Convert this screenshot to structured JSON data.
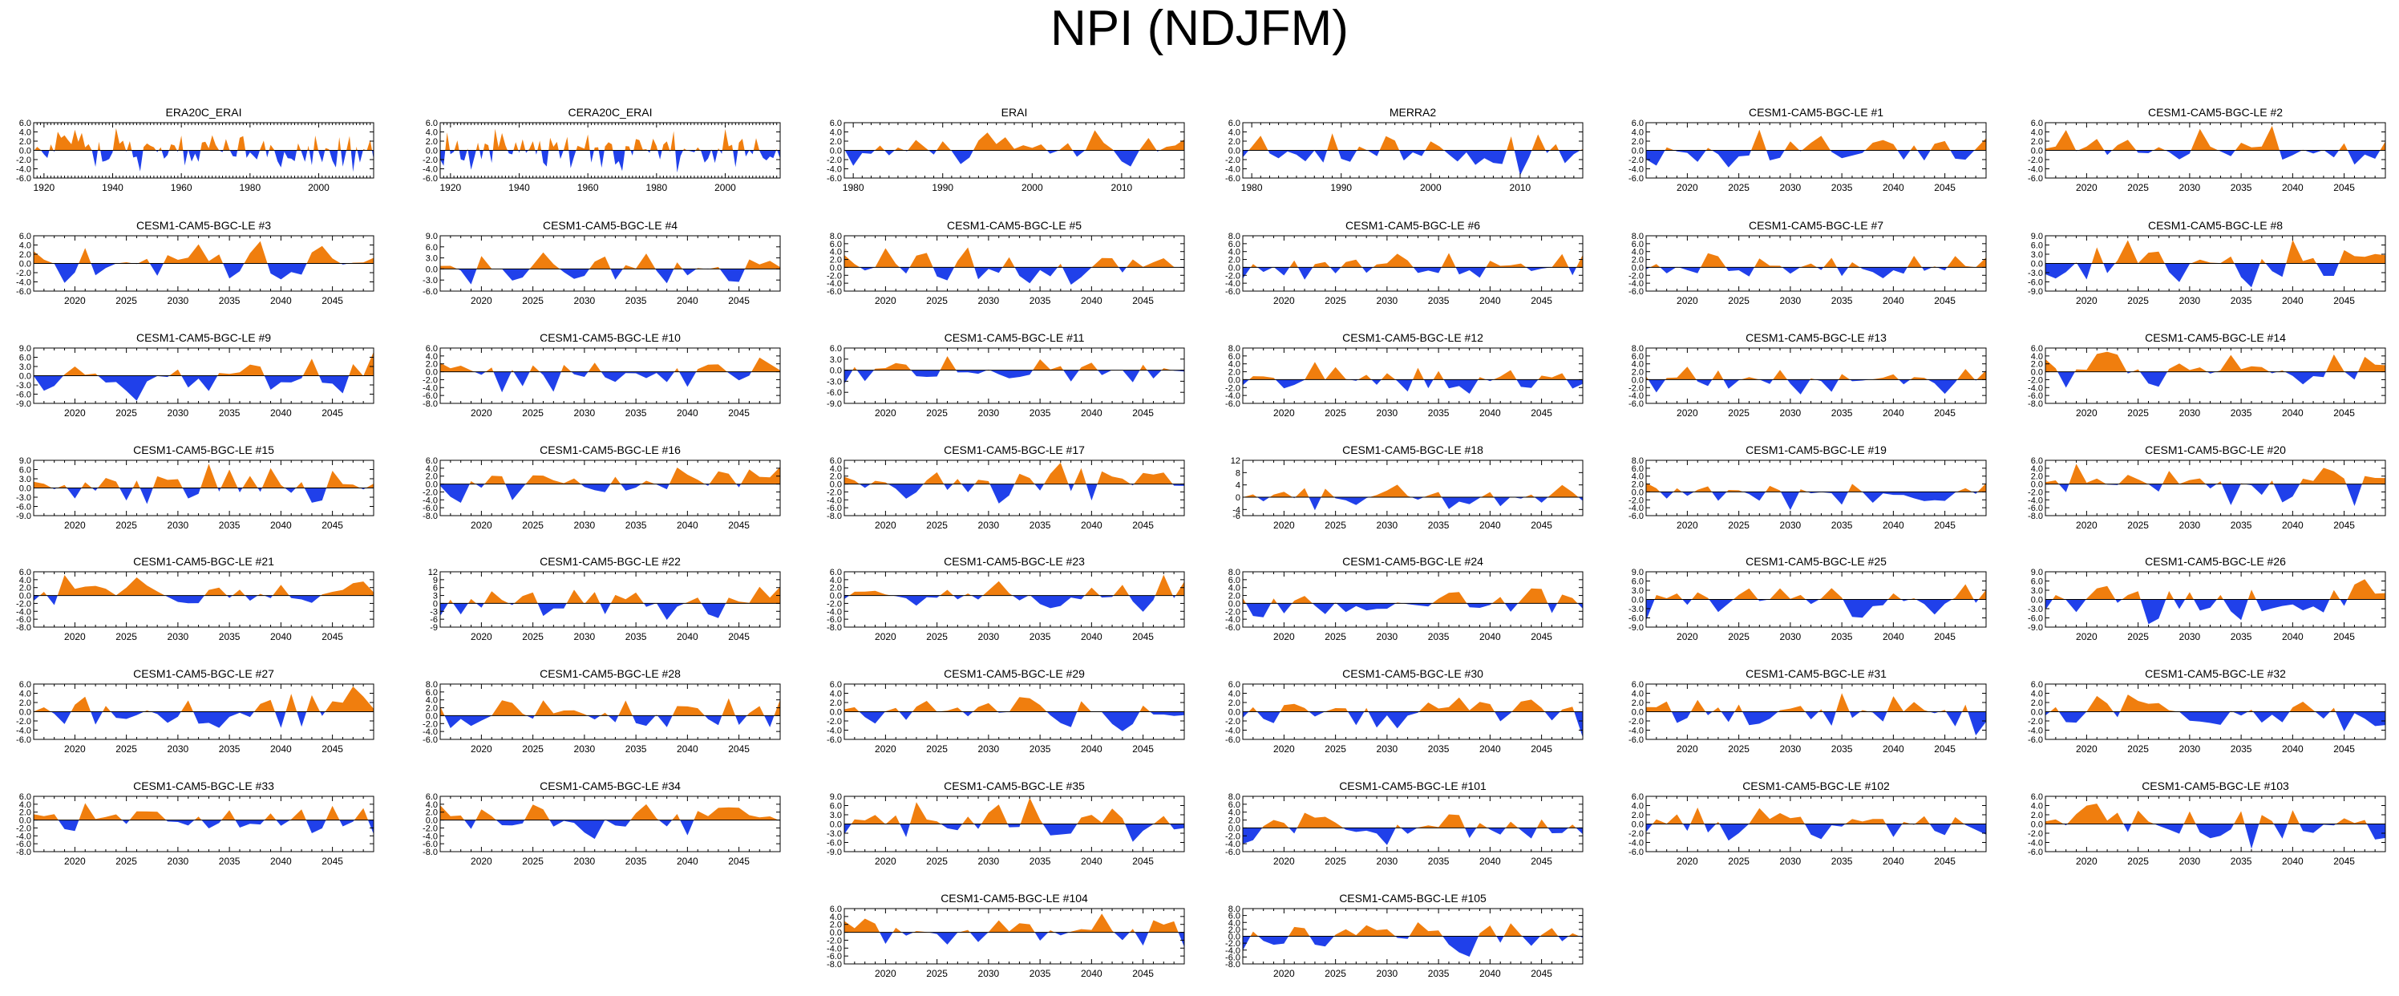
{
  "figure": {
    "title": "NPI (NDJFM)"
  },
  "colors": {
    "positive": "#f07e0e",
    "negative": "#2040ea",
    "axis": "#000000",
    "zero": "#000000"
  },
  "chart_data": [
    {
      "type": "area",
      "title": "ERA20C_ERAI",
      "xrange": [
        1917,
        2016
      ],
      "xticks": [
        1920,
        1940,
        1960,
        1980,
        2000
      ],
      "ylim": [
        -6,
        6
      ],
      "yticks": [
        "6.0",
        "4.0",
        "2.0",
        "0.0",
        "-2.0",
        "-4.0",
        "-6.0"
      ],
      "seed": 11
    },
    {
      "type": "area",
      "title": "CERA20C_ERAI",
      "xrange": [
        1917,
        2016
      ],
      "xticks": [
        1920,
        1940,
        1960,
        1980,
        2000
      ],
      "ylim": [
        -6,
        6
      ],
      "yticks": [
        "6.0",
        "4.0",
        "2.0",
        "0.0",
        "-2.0",
        "-4.0",
        "-6.0"
      ],
      "seed": 12
    },
    {
      "type": "area",
      "title": "ERAI",
      "xrange": [
        1979,
        2017
      ],
      "xticks": [
        1980,
        1990,
        2000,
        2010
      ],
      "ylim": [
        -6,
        6
      ],
      "yticks": [
        "6.0",
        "4.0",
        "2.0",
        "0.0",
        "-2.0",
        "-4.0",
        "-6.0"
      ],
      "seed": 13
    },
    {
      "type": "area",
      "title": "MERRA2",
      "xrange": [
        1979,
        2017
      ],
      "xticks": [
        1980,
        1990,
        2000,
        2010
      ],
      "ylim": [
        -6,
        6
      ],
      "yticks": [
        "6.0",
        "4.0",
        "2.0",
        "0.0",
        "-2.0",
        "-4.0",
        "-6.0"
      ],
      "seed": 14
    },
    {
      "type": "area",
      "title": "CESM1-CAM5-BGC-LE #1",
      "xrange": [
        2016,
        2049
      ],
      "xticks": [
        2020,
        2025,
        2030,
        2035,
        2040,
        2045
      ],
      "ylim": [
        -6,
        6
      ],
      "yticks": [
        "6.0",
        "4.0",
        "2.0",
        "0.0",
        "-2.0",
        "-4.0",
        "-6.0"
      ],
      "seed": 21
    },
    {
      "type": "area",
      "title": "CESM1-CAM5-BGC-LE #2",
      "xrange": [
        2016,
        2049
      ],
      "xticks": [
        2020,
        2025,
        2030,
        2035,
        2040,
        2045
      ],
      "ylim": [
        -6,
        6
      ],
      "yticks": [
        "6.0",
        "4.0",
        "2.0",
        "0.0",
        "-2.0",
        "-4.0",
        "-6.0"
      ],
      "seed": 22
    },
    {
      "type": "area",
      "title": "CESM1-CAM5-BGC-LE #3",
      "xrange": [
        2016,
        2049
      ],
      "xticks": [
        2020,
        2025,
        2030,
        2035,
        2040,
        2045
      ],
      "ylim": [
        -6,
        6
      ],
      "yticks": [
        "6.0",
        "4.0",
        "2.0",
        "0.0",
        "-2.0",
        "-4.0",
        "-6.0"
      ],
      "seed": 23
    },
    {
      "type": "area",
      "title": "CESM1-CAM5-BGC-LE #4",
      "xrange": [
        2016,
        2049
      ],
      "xticks": [
        2020,
        2025,
        2030,
        2035,
        2040,
        2045
      ],
      "ylim": [
        -6,
        9
      ],
      "yticks": [
        "9.0",
        "6.0",
        "3.0",
        "0.0",
        "-3.0",
        "-6.0"
      ],
      "seed": 24
    },
    {
      "type": "area",
      "title": "CESM1-CAM5-BGC-LE #5",
      "xrange": [
        2016,
        2049
      ],
      "xticks": [
        2020,
        2025,
        2030,
        2035,
        2040,
        2045
      ],
      "ylim": [
        -6,
        8
      ],
      "yticks": [
        "8.0",
        "6.0",
        "4.0",
        "2.0",
        "0.0",
        "-2.0",
        "-4.0",
        "-6.0"
      ],
      "seed": 25
    },
    {
      "type": "area",
      "title": "CESM1-CAM5-BGC-LE #6",
      "xrange": [
        2016,
        2049
      ],
      "xticks": [
        2020,
        2025,
        2030,
        2035,
        2040,
        2045
      ],
      "ylim": [
        -6,
        8
      ],
      "yticks": [
        "8.0",
        "6.0",
        "4.0",
        "2.0",
        "0.0",
        "-2.0",
        "-4.0",
        "-6.0"
      ],
      "seed": 26
    },
    {
      "type": "area",
      "title": "CESM1-CAM5-BGC-LE #7",
      "xrange": [
        2016,
        2049
      ],
      "xticks": [
        2020,
        2025,
        2030,
        2035,
        2040,
        2045
      ],
      "ylim": [
        -6,
        8
      ],
      "yticks": [
        "8.0",
        "6.0",
        "4.0",
        "2.0",
        "0.0",
        "-2.0",
        "-4.0",
        "-6.0"
      ],
      "seed": 27
    },
    {
      "type": "area",
      "title": "CESM1-CAM5-BGC-LE #8",
      "xrange": [
        2016,
        2049
      ],
      "xticks": [
        2020,
        2025,
        2030,
        2035,
        2040,
        2045
      ],
      "ylim": [
        -9,
        9
      ],
      "yticks": [
        "9.0",
        "6.0",
        "3.0",
        "0.0",
        "-3.0",
        "-6.0",
        "-9.0"
      ],
      "seed": 28
    },
    {
      "type": "area",
      "title": "CESM1-CAM5-BGC-LE #9",
      "xrange": [
        2016,
        2049
      ],
      "xticks": [
        2020,
        2025,
        2030,
        2035,
        2040,
        2045
      ],
      "ylim": [
        -9,
        9
      ],
      "yticks": [
        "9.0",
        "6.0",
        "3.0",
        "0.0",
        "-3.0",
        "-6.0",
        "-9.0"
      ],
      "seed": 29
    },
    {
      "type": "area",
      "title": "CESM1-CAM5-BGC-LE #10",
      "xrange": [
        2016,
        2049
      ],
      "xticks": [
        2020,
        2025,
        2030,
        2035,
        2040,
        2045
      ],
      "ylim": [
        -8,
        6
      ],
      "yticks": [
        "6.0",
        "4.0",
        "2.0",
        "0.0",
        "-2.0",
        "-4.0",
        "-6.0",
        "-8.0"
      ],
      "seed": 30
    },
    {
      "type": "area",
      "title": "CESM1-CAM5-BGC-LE #11",
      "xrange": [
        2016,
        2049
      ],
      "xticks": [
        2020,
        2025,
        2030,
        2035,
        2040,
        2045
      ],
      "ylim": [
        -9,
        6
      ],
      "yticks": [
        "6.0",
        "3.0",
        "0.0",
        "-3.0",
        "-6.0",
        "-9.0"
      ],
      "seed": 31
    },
    {
      "type": "area",
      "title": "CESM1-CAM5-BGC-LE #12",
      "xrange": [
        2016,
        2049
      ],
      "xticks": [
        2020,
        2025,
        2030,
        2035,
        2040,
        2045
      ],
      "ylim": [
        -6,
        8
      ],
      "yticks": [
        "8.0",
        "6.0",
        "4.0",
        "2.0",
        "0.0",
        "-2.0",
        "-4.0",
        "-6.0"
      ],
      "seed": 32
    },
    {
      "type": "area",
      "title": "CESM1-CAM5-BGC-LE #13",
      "xrange": [
        2016,
        2049
      ],
      "xticks": [
        2020,
        2025,
        2030,
        2035,
        2040,
        2045
      ],
      "ylim": [
        -6,
        8
      ],
      "yticks": [
        "8.0",
        "6.0",
        "4.0",
        "2.0",
        "0.0",
        "-2.0",
        "-4.0",
        "-6.0"
      ],
      "seed": 33
    },
    {
      "type": "area",
      "title": "CESM1-CAM5-BGC-LE #14",
      "xrange": [
        2016,
        2049
      ],
      "xticks": [
        2020,
        2025,
        2030,
        2035,
        2040,
        2045
      ],
      "ylim": [
        -8,
        6
      ],
      "yticks": [
        "6.0",
        "4.0",
        "2.0",
        "0.0",
        "-2.0",
        "-4.0",
        "-6.0",
        "-8.0"
      ],
      "seed": 34
    },
    {
      "type": "area",
      "title": "CESM1-CAM5-BGC-LE #15",
      "xrange": [
        2016,
        2049
      ],
      "xticks": [
        2020,
        2025,
        2030,
        2035,
        2040,
        2045
      ],
      "ylim": [
        -9,
        9
      ],
      "yticks": [
        "9.0",
        "6.0",
        "3.0",
        "0.0",
        "-3.0",
        "-6.0",
        "-9.0"
      ],
      "seed": 35
    },
    {
      "type": "area",
      "title": "CESM1-CAM5-BGC-LE #16",
      "xrange": [
        2016,
        2049
      ],
      "xticks": [
        2020,
        2025,
        2030,
        2035,
        2040,
        2045
      ],
      "ylim": [
        -8,
        6
      ],
      "yticks": [
        "6.0",
        "4.0",
        "2.0",
        "0.0",
        "-2.0",
        "-4.0",
        "-6.0",
        "-8.0"
      ],
      "seed": 36
    },
    {
      "type": "area",
      "title": "CESM1-CAM5-BGC-LE #17",
      "xrange": [
        2016,
        2049
      ],
      "xticks": [
        2020,
        2025,
        2030,
        2035,
        2040,
        2045
      ],
      "ylim": [
        -8,
        6
      ],
      "yticks": [
        "6.0",
        "4.0",
        "2.0",
        "0.0",
        "-2.0",
        "-4.0",
        "-6.0",
        "-8.0"
      ],
      "seed": 37
    },
    {
      "type": "area",
      "title": "CESM1-CAM5-BGC-LE #18",
      "xrange": [
        2016,
        2049
      ],
      "xticks": [
        2020,
        2025,
        2030,
        2035,
        2040,
        2045
      ],
      "ylim": [
        -6,
        12
      ],
      "yticks": [
        "12",
        "8",
        "4",
        "0",
        "-4",
        "-6"
      ],
      "seed": 38
    },
    {
      "type": "area",
      "title": "CESM1-CAM5-BGC-LE #19",
      "xrange": [
        2016,
        2049
      ],
      "xticks": [
        2020,
        2025,
        2030,
        2035,
        2040,
        2045
      ],
      "ylim": [
        -6,
        8
      ],
      "yticks": [
        "8.0",
        "6.0",
        "4.0",
        "2.0",
        "0.0",
        "-2.0",
        "-4.0",
        "-6.0"
      ],
      "seed": 39
    },
    {
      "type": "area",
      "title": "CESM1-CAM5-BGC-LE #20",
      "xrange": [
        2016,
        2049
      ],
      "xticks": [
        2020,
        2025,
        2030,
        2035,
        2040,
        2045
      ],
      "ylim": [
        -8,
        6
      ],
      "yticks": [
        "6.0",
        "4.0",
        "2.0",
        "0.0",
        "-2.0",
        "-4.0",
        "-6.0",
        "-8.0"
      ],
      "seed": 40
    },
    {
      "type": "area",
      "title": "CESM1-CAM5-BGC-LE #21",
      "xrange": [
        2016,
        2049
      ],
      "xticks": [
        2020,
        2025,
        2030,
        2035,
        2040,
        2045
      ],
      "ylim": [
        -8,
        6
      ],
      "yticks": [
        "6.0",
        "4.0",
        "2.0",
        "0.0",
        "-2.0",
        "-4.0",
        "-6.0",
        "-8.0"
      ],
      "seed": 41
    },
    {
      "type": "area",
      "title": "CESM1-CAM5-BGC-LE #22",
      "xrange": [
        2016,
        2049
      ],
      "xticks": [
        2020,
        2025,
        2030,
        2035,
        2040,
        2045
      ],
      "ylim": [
        -9,
        12
      ],
      "yticks": [
        "12",
        "9",
        "6",
        "3",
        "0",
        "-3",
        "-6",
        "-9"
      ],
      "seed": 42
    },
    {
      "type": "area",
      "title": "CESM1-CAM5-BGC-LE #23",
      "xrange": [
        2016,
        2049
      ],
      "xticks": [
        2020,
        2025,
        2030,
        2035,
        2040,
        2045
      ],
      "ylim": [
        -8,
        6
      ],
      "yticks": [
        "6.0",
        "4.0",
        "2.0",
        "0.0",
        "-2.0",
        "-4.0",
        "-6.0",
        "-8.0"
      ],
      "seed": 43
    },
    {
      "type": "area",
      "title": "CESM1-CAM5-BGC-LE #24",
      "xrange": [
        2016,
        2049
      ],
      "xticks": [
        2020,
        2025,
        2030,
        2035,
        2040,
        2045
      ],
      "ylim": [
        -6,
        8
      ],
      "yticks": [
        "8.0",
        "6.0",
        "4.0",
        "2.0",
        "0.0",
        "-2.0",
        "-4.0",
        "-6.0"
      ],
      "seed": 44
    },
    {
      "type": "area",
      "title": "CESM1-CAM5-BGC-LE #25",
      "xrange": [
        2016,
        2049
      ],
      "xticks": [
        2020,
        2025,
        2030,
        2035,
        2040,
        2045
      ],
      "ylim": [
        -9,
        9
      ],
      "yticks": [
        "9.0",
        "6.0",
        "3.0",
        "0.0",
        "-3.0",
        "-6.0",
        "-9.0"
      ],
      "seed": 45
    },
    {
      "type": "area",
      "title": "CESM1-CAM5-BGC-LE #26",
      "xrange": [
        2016,
        2049
      ],
      "xticks": [
        2020,
        2025,
        2030,
        2035,
        2040,
        2045
      ],
      "ylim": [
        -9,
        9
      ],
      "yticks": [
        "9.0",
        "6.0",
        "3.0",
        "0.0",
        "-3.0",
        "-6.0",
        "-9.0"
      ],
      "seed": 46
    },
    {
      "type": "area",
      "title": "CESM1-CAM5-BGC-LE #27",
      "xrange": [
        2016,
        2049
      ],
      "xticks": [
        2020,
        2025,
        2030,
        2035,
        2040,
        2045
      ],
      "ylim": [
        -6,
        6
      ],
      "yticks": [
        "6.0",
        "4.0",
        "2.0",
        "0.0",
        "-2.0",
        "-4.0",
        "-6.0"
      ],
      "seed": 47
    },
    {
      "type": "area",
      "title": "CESM1-CAM5-BGC-LE #28",
      "xrange": [
        2016,
        2049
      ],
      "xticks": [
        2020,
        2025,
        2030,
        2035,
        2040,
        2045
      ],
      "ylim": [
        -6,
        8
      ],
      "yticks": [
        "8.0",
        "6.0",
        "4.0",
        "2.0",
        "0.0",
        "-2.0",
        "-4.0",
        "-6.0"
      ],
      "seed": 48
    },
    {
      "type": "area",
      "title": "CESM1-CAM5-BGC-LE #29",
      "xrange": [
        2016,
        2049
      ],
      "xticks": [
        2020,
        2025,
        2030,
        2035,
        2040,
        2045
      ],
      "ylim": [
        -6,
        6
      ],
      "yticks": [
        "6.0",
        "4.0",
        "2.0",
        "0.0",
        "-2.0",
        "-4.0",
        "-6.0"
      ],
      "seed": 49
    },
    {
      "type": "area",
      "title": "CESM1-CAM5-BGC-LE #30",
      "xrange": [
        2016,
        2049
      ],
      "xticks": [
        2020,
        2025,
        2030,
        2035,
        2040,
        2045
      ],
      "ylim": [
        -6,
        6
      ],
      "yticks": [
        "6.0",
        "4.0",
        "2.0",
        "0.0",
        "-2.0",
        "-4.0",
        "-6.0"
      ],
      "seed": 50
    },
    {
      "type": "area",
      "title": "CESM1-CAM5-BGC-LE #31",
      "xrange": [
        2016,
        2049
      ],
      "xticks": [
        2020,
        2025,
        2030,
        2035,
        2040,
        2045
      ],
      "ylim": [
        -6,
        6
      ],
      "yticks": [
        "6.0",
        "4.0",
        "2.0",
        "0.0",
        "-2.0",
        "-4.0",
        "-6.0"
      ],
      "seed": 51
    },
    {
      "type": "area",
      "title": "CESM1-CAM5-BGC-LE #32",
      "xrange": [
        2016,
        2049
      ],
      "xticks": [
        2020,
        2025,
        2030,
        2035,
        2040,
        2045
      ],
      "ylim": [
        -6,
        6
      ],
      "yticks": [
        "6.0",
        "4.0",
        "2.0",
        "0.0",
        "-2.0",
        "-4.0",
        "-6.0"
      ],
      "seed": 52
    },
    {
      "type": "area",
      "title": "CESM1-CAM5-BGC-LE #33",
      "xrange": [
        2016,
        2049
      ],
      "xticks": [
        2020,
        2025,
        2030,
        2035,
        2040,
        2045
      ],
      "ylim": [
        -8,
        6
      ],
      "yticks": [
        "6.0",
        "4.0",
        "2.0",
        "0.0",
        "-2.0",
        "-4.0",
        "-6.0",
        "-8.0"
      ],
      "seed": 53
    },
    {
      "type": "area",
      "title": "CESM1-CAM5-BGC-LE #34",
      "xrange": [
        2016,
        2049
      ],
      "xticks": [
        2020,
        2025,
        2030,
        2035,
        2040,
        2045
      ],
      "ylim": [
        -8,
        6
      ],
      "yticks": [
        "6.0",
        "4.0",
        "2.0",
        "0.0",
        "-2.0",
        "-4.0",
        "-6.0",
        "-8.0"
      ],
      "seed": 54
    },
    {
      "type": "area",
      "title": "CESM1-CAM5-BGC-LE #35",
      "xrange": [
        2016,
        2049
      ],
      "xticks": [
        2020,
        2025,
        2030,
        2035,
        2040,
        2045
      ],
      "ylim": [
        -9,
        9
      ],
      "yticks": [
        "9.0",
        "6.0",
        "3.0",
        "0.0",
        "-3.0",
        "-6.0",
        "-9.0"
      ],
      "seed": 55
    },
    {
      "type": "area",
      "title": "CESM1-CAM5-BGC-LE #101",
      "xrange": [
        2016,
        2049
      ],
      "xticks": [
        2020,
        2025,
        2030,
        2035,
        2040,
        2045
      ],
      "ylim": [
        -6,
        8
      ],
      "yticks": [
        "8.0",
        "6.0",
        "4.0",
        "2.0",
        "0.0",
        "-2.0",
        "-4.0",
        "-6.0"
      ],
      "seed": 56
    },
    {
      "type": "area",
      "title": "CESM1-CAM5-BGC-LE #102",
      "xrange": [
        2016,
        2049
      ],
      "xticks": [
        2020,
        2025,
        2030,
        2035,
        2040,
        2045
      ],
      "ylim": [
        -6,
        6
      ],
      "yticks": [
        "6.0",
        "4.0",
        "2.0",
        "0.0",
        "-2.0",
        "-4.0",
        "-6.0"
      ],
      "seed": 57
    },
    {
      "type": "area",
      "title": "CESM1-CAM5-BGC-LE #103",
      "xrange": [
        2016,
        2049
      ],
      "xticks": [
        2020,
        2025,
        2030,
        2035,
        2040,
        2045
      ],
      "ylim": [
        -6,
        6
      ],
      "yticks": [
        "6.0",
        "4.0",
        "2.0",
        "0.0",
        "-2.0",
        "-4.0",
        "-6.0"
      ],
      "seed": 58
    },
    {
      "type": "area",
      "title": "CESM1-CAM5-BGC-LE #104",
      "xrange": [
        2016,
        2049
      ],
      "xticks": [
        2020,
        2025,
        2030,
        2035,
        2040,
        2045
      ],
      "ylim": [
        -8,
        6
      ],
      "yticks": [
        "6.0",
        "4.0",
        "2.0",
        "0.0",
        "-2.0",
        "-4.0",
        "-6.0",
        "-8.0"
      ],
      "seed": 59
    },
    {
      "type": "area",
      "title": "CESM1-CAM5-BGC-LE #105",
      "xrange": [
        2016,
        2049
      ],
      "xticks": [
        2020,
        2025,
        2030,
        2035,
        2040,
        2045
      ],
      "ylim": [
        -8,
        8
      ],
      "yticks": [
        "8.0",
        "6.0",
        "4.0",
        "2.0",
        "0.0",
        "-2.0",
        "-4.0",
        "-6.0",
        "-8.0"
      ],
      "seed": 60
    }
  ]
}
